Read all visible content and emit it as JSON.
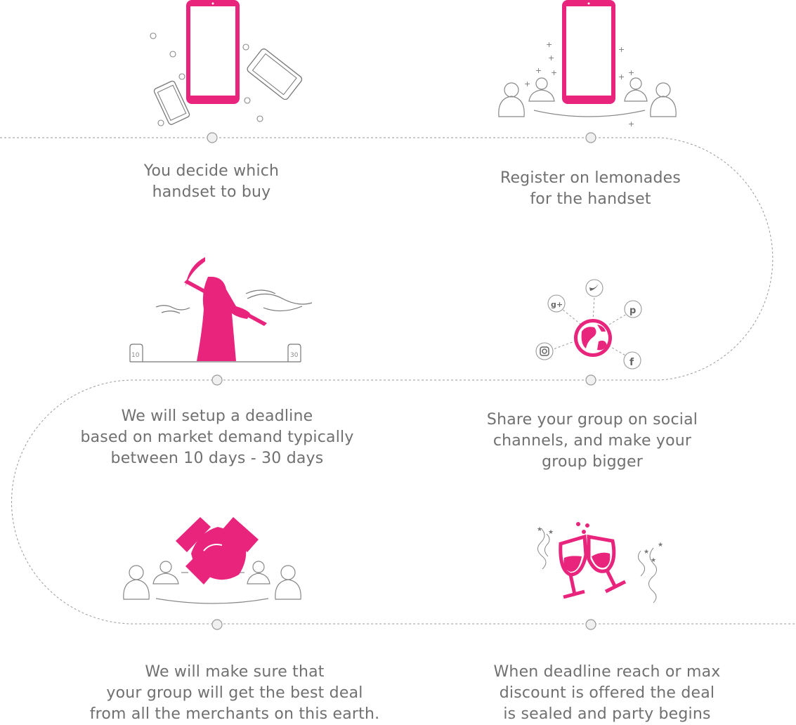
{
  "colors": {
    "accent": "#e8247c",
    "line": "#8a8a8a",
    "text": "#707070",
    "dot_fill": "#f0f0f0"
  },
  "steps": [
    {
      "id": "decide",
      "text": "You decide which\nhandset to buy",
      "icon": "phones-icon"
    },
    {
      "id": "register",
      "text": "Register on lemonades\nfor the handset",
      "icon": "phone-with-users-icon"
    },
    {
      "id": "share",
      "text": "Share your group on social\nchannels, and make your\ngroup bigger",
      "icon": "social-globe-icon"
    },
    {
      "id": "deadline",
      "text": "We will setup a deadline\nbased on market demand typically\nbetween 10 days - 30 days",
      "icon": "grim-reaper-icon"
    },
    {
      "id": "deal",
      "text": "We will make sure that\nyour group will get the best deal\nfrom all the merchants on this earth.",
      "icon": "handshake-icon"
    },
    {
      "id": "party",
      "text": "When deadline reach or max\ndiscount is offered the deal\nis sealed and party begins",
      "icon": "toast-glasses-icon"
    }
  ],
  "deadline_labels": {
    "start": "10",
    "end": "30"
  },
  "social_icons": [
    "twitter-icon",
    "google-plus-icon",
    "pinterest-icon",
    "instagram-icon",
    "facebook-icon"
  ]
}
